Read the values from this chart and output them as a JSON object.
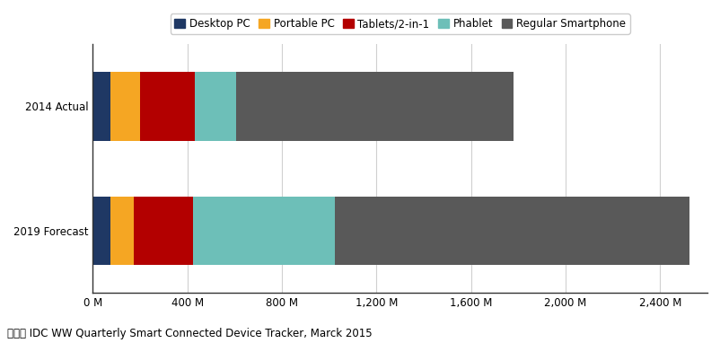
{
  "categories": [
    "2019 Forecast",
    "2014 Actual"
  ],
  "series": [
    {
      "name": "Desktop PC",
      "color": "#1f3864",
      "values": [
        75,
        75
      ]
    },
    {
      "name": "Portable PC",
      "color": "#f5a623",
      "values": [
        100,
        125
      ]
    },
    {
      "name": "Tablets/2-in-1",
      "color": "#b30000",
      "values": [
        250,
        230
      ]
    },
    {
      "name": "Phablet",
      "color": "#6dbfb8",
      "values": [
        600,
        175
      ]
    },
    {
      "name": "Regular Smartphone",
      "color": "#595959",
      "values": [
        1500,
        1175
      ]
    }
  ],
  "xlim": [
    0,
    2600
  ],
  "xticks": [
    0,
    400,
    800,
    1200,
    1600,
    2000,
    2400
  ],
  "xtick_labels": [
    "0 M",
    "400 M",
    "800 M",
    "1,200 M",
    "1,600 M",
    "2,000 M",
    "2,400 M"
  ],
  "background_color": "#ffffff",
  "legend_fontsize": 8.5,
  "tick_fontsize": 8.5,
  "source_text": "자료： IDC WW Quarterly Smart Connected Device Tracker, Marck 2015",
  "bar_height": 0.55,
  "grid_color": "#d0d0d0"
}
